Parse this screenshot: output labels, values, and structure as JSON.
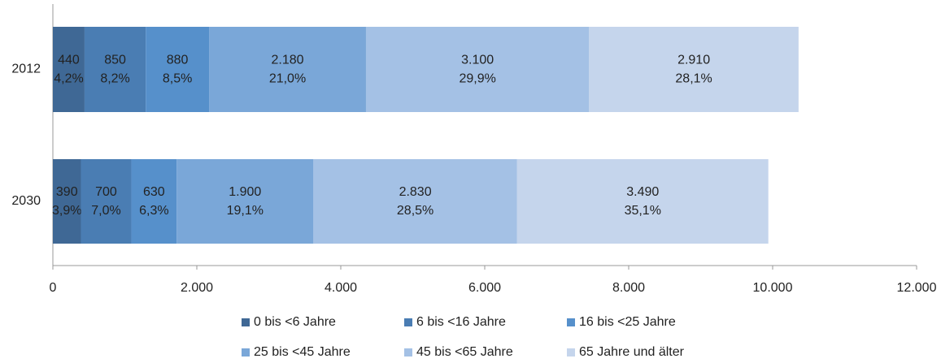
{
  "chart_data": {
    "type": "stacked_barh",
    "categories": [
      "2012",
      "2030"
    ],
    "series": [
      {
        "name": "0 bis <6 Jahre",
        "color": "#3f6895",
        "values": [
          440,
          390
        ],
        "share_labels": [
          "4,2%",
          "3,9%"
        ]
      },
      {
        "name": "6 bis <16 Jahre",
        "color": "#4a7db3",
        "values": [
          850,
          700
        ],
        "share_labels": [
          "8,2%",
          "7,0%"
        ]
      },
      {
        "name": "16 bis <25 Jahre",
        "color": "#5690cb",
        "values": [
          880,
          630
        ],
        "share_labels": [
          "8,5%",
          "6,3%"
        ]
      },
      {
        "name": "25 bis <45 Jahre",
        "color": "#7aa7d8",
        "values": [
          2180,
          1900
        ],
        "value_labels": [
          "2.180",
          "1.900"
        ],
        "share_labels": [
          "21,0%",
          "19,1%"
        ]
      },
      {
        "name": "45 bis <65 Jahre",
        "color": "#a4c1e5",
        "values": [
          3100,
          2830
        ],
        "value_labels": [
          "3.100",
          "2.830"
        ],
        "share_labels": [
          "29,9%",
          "28,5%"
        ]
      },
      {
        "name": "65 Jahre und älter",
        "color": "#c5d5ec",
        "values": [
          2910,
          3490
        ],
        "value_labels": [
          "2.910",
          "3.490"
        ],
        "share_labels": [
          "28,1%",
          "35,1%"
        ]
      }
    ],
    "xlim": [
      0,
      12000
    ],
    "xticks": [
      0,
      {
        "value": 2000,
        "label": "2.000"
      },
      {
        "value": 4000,
        "label": "4.000"
      },
      {
        "value": 6000,
        "label": "6.000"
      },
      {
        "value": 8000,
        "label": "8.000"
      },
      {
        "value": 10000,
        "label": "10.000"
      },
      {
        "value": 12000,
        "label": "12.000"
      }
    ],
    "legend": "bottom"
  }
}
